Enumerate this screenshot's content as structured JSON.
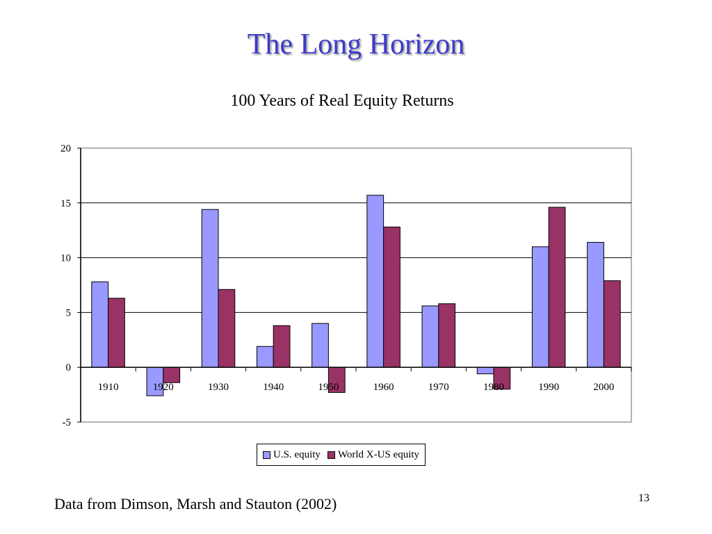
{
  "slide": {
    "title": "The Long Horizon",
    "source_note": "Data from Dimson, Marsh and Stauton (2002)",
    "page_number": "13"
  },
  "chart_data": {
    "type": "bar",
    "title": "100 Years of Real Equity Returns",
    "xlabel": "",
    "ylabel": "",
    "categories": [
      "1910",
      "1920",
      "1930",
      "1940",
      "1950",
      "1960",
      "1970",
      "1980",
      "1990",
      "2000"
    ],
    "series": [
      {
        "name": "U.S. equity",
        "color": "#9999ff",
        "values": [
          7.8,
          -2.6,
          14.4,
          1.9,
          4.0,
          15.7,
          5.6,
          -0.6,
          11.0,
          11.4
        ]
      },
      {
        "name": "World X-US equity",
        "color": "#993366",
        "values": [
          6.3,
          -1.4,
          7.1,
          3.8,
          -2.3,
          12.8,
          5.8,
          -2.0,
          14.6,
          7.9
        ]
      }
    ],
    "ylim": [
      -5,
      20
    ],
    "yticks": [
      20,
      15,
      10,
      5,
      0,
      -5
    ],
    "grid": true,
    "legend_position": "bottom"
  }
}
